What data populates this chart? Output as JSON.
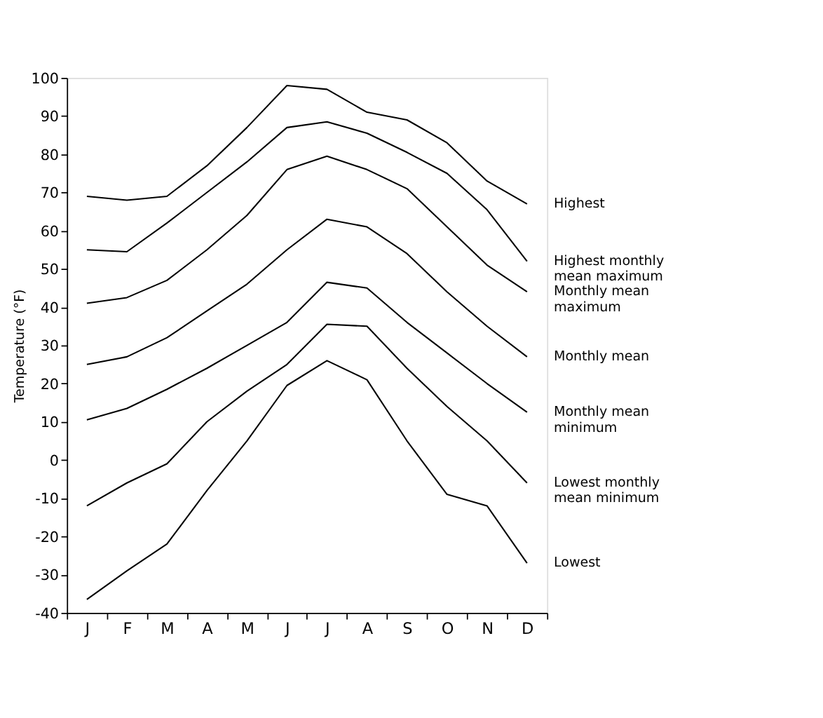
{
  "chart_data": {
    "type": "line",
    "ylabel": "Temperature (°F)",
    "categories": [
      "J",
      "F",
      "M",
      "A",
      "M",
      "J",
      "J",
      "A",
      "S",
      "O",
      "N",
      "D"
    ],
    "series": [
      {
        "name": "Highest",
        "color": "#000000",
        "values": [
          69,
          68,
          69,
          77,
          87,
          98,
          97,
          91,
          89,
          83,
          73,
          67
        ]
      },
      {
        "name": "Highest monthly\nmean maximum",
        "color": "#000000",
        "values": [
          55,
          54.5,
          62,
          70,
          78,
          87,
          88.5,
          85.5,
          80.5,
          75,
          65.5,
          52
        ]
      },
      {
        "name": "Monthly mean\nmaximum",
        "color": "#000000",
        "values": [
          41,
          42.5,
          47,
          55,
          64,
          76,
          79.5,
          76,
          71,
          61,
          51,
          44
        ]
      },
      {
        "name": "Monthly mean",
        "color": "#000000",
        "values": [
          25,
          27,
          32,
          39,
          46,
          55,
          63,
          61,
          54,
          44,
          35,
          27
        ]
      },
      {
        "name": "Monthly mean\nminimum",
        "color": "#000000",
        "values": [
          10.5,
          13.5,
          18.5,
          24,
          30,
          36,
          46.5,
          45,
          36,
          28,
          20,
          12.5
        ]
      },
      {
        "name": "Lowest monthly\nmean minimum",
        "color": "#000000",
        "values": [
          -12,
          -6,
          -1,
          10,
          18,
          25,
          35.5,
          35,
          24,
          14,
          5,
          -6
        ]
      },
      {
        "name": "Lowest",
        "color": "#000000",
        "values": [
          -36.5,
          -29,
          -22,
          -8,
          5,
          19.5,
          26,
          21,
          5,
          -9,
          -12,
          -27
        ]
      }
    ],
    "ylim": [
      -40,
      100
    ],
    "yticks": [
      -40,
      -30,
      -20,
      -10,
      0,
      10,
      20,
      30,
      40,
      50,
      60,
      70,
      80,
      90,
      100
    ],
    "grid": false,
    "legend": false,
    "marker": "none",
    "line_style": "solid"
  }
}
